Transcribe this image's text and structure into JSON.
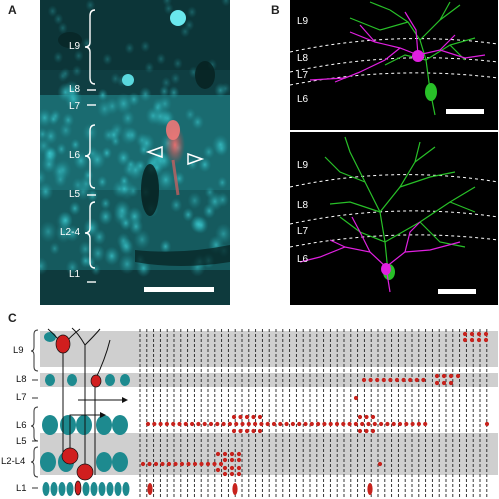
{
  "panels": {
    "a": {
      "letter": "A",
      "layers": [
        "L9",
        "L8",
        "L7",
        "L6",
        "L5",
        "L2-4",
        "L1"
      ]
    },
    "b": {
      "letter": "B",
      "top_layers": [
        "L9",
        "L8",
        "L7",
        "L6"
      ],
      "bottom_layers": [
        "L9",
        "L8",
        "L7",
        "L6"
      ]
    },
    "c": {
      "letter": "C",
      "layers": [
        "L9",
        "L8",
        "L7",
        "L6",
        "L5",
        "L2-L4",
        "L1"
      ]
    }
  },
  "colors": {
    "cyan_stain": "#1fb8c0",
    "red_cell": "#e06060",
    "green_neuron": "#28c028",
    "magenta_neuron": "#e020e0",
    "band_gray": "#cfcfcf",
    "dot_red": "#c8221c",
    "teal_cell": "#1d8a8f"
  }
}
